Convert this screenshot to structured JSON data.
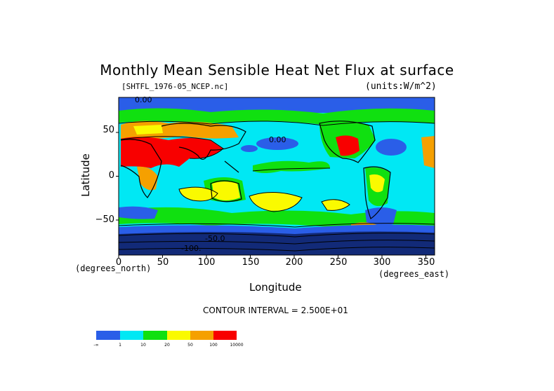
{
  "title": "Monthly Mean Sensible Heat Net Flux at surface",
  "file_label": "[SHTFL_1976-05_NCEP.nc]",
  "units_label": "(units:W/m^2)",
  "contour_interval": "CONTOUR INTERVAL = 2.500E+01",
  "colors": {
    "blue": "#2a5ee8",
    "cyan": "#00e8f4",
    "green": "#10e010",
    "yellow": "#fafa00",
    "orange": "#f5a000",
    "red": "#f80000",
    "navy": "#122a78"
  },
  "map": {
    "xlabel": "Longitude",
    "ylabel": "Latitude",
    "x_unit": "(degrees_east)",
    "y_unit": "(degrees_north)",
    "xlim": [
      0,
      360
    ],
    "ylim": [
      -90,
      90
    ],
    "x_ticks": [
      "0",
      "50",
      "100",
      "150",
      "200",
      "250",
      "300",
      "350"
    ],
    "y_ticks": [
      "50",
      "0",
      "−50"
    ],
    "contour_labels": [
      "0.00",
      "0.00",
      "-50.0",
      "-100."
    ]
  },
  "legend": {
    "labels": [
      "-∞",
      "1",
      "10",
      "20",
      "50",
      "100",
      "10000"
    ]
  }
}
